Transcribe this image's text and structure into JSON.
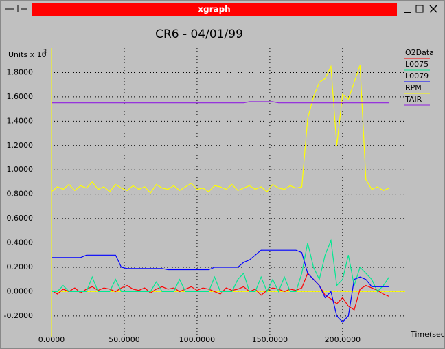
{
  "window_title": "xgraph",
  "chart_data": {
    "type": "line",
    "title": "CR6 - 04/01/99",
    "ylabel": "Units x 10",
    "ylabel_exponent": "3",
    "xlabel": "Time(sec)",
    "x": [
      0,
      4,
      8,
      12,
      16,
      20,
      24,
      28,
      32,
      36,
      40,
      44,
      48,
      52,
      56,
      60,
      64,
      68,
      72,
      76,
      80,
      84,
      88,
      92,
      96,
      100,
      104,
      108,
      112,
      116,
      120,
      124,
      128,
      132,
      136,
      140,
      144,
      148,
      152,
      156,
      160,
      164,
      168,
      172,
      176,
      180,
      184,
      188,
      192,
      196,
      200,
      204,
      208,
      212,
      216,
      220,
      224,
      228,
      232
    ],
    "series": [
      {
        "name": "O2Data",
        "color": "#ff0000",
        "values": [
          0.01,
          -0.02,
          0.02,
          0.0,
          0.03,
          -0.01,
          0.02,
          0.04,
          0.01,
          0.03,
          0.02,
          0.0,
          0.03,
          0.05,
          0.02,
          0.01,
          0.03,
          -0.01,
          0.02,
          0.04,
          0.02,
          0.03,
          0.0,
          0.02,
          0.04,
          0.01,
          0.03,
          0.02,
          0.0,
          -0.02,
          0.03,
          0.01,
          0.02,
          0.04,
          0.0,
          0.02,
          -0.03,
          0.01,
          0.03,
          0.02,
          0.0,
          0.02,
          0.01,
          0.03,
          0.15,
          0.1,
          0.05,
          -0.03,
          -0.06,
          -0.1,
          -0.05,
          -0.12,
          -0.15,
          0.02,
          0.05,
          0.03,
          0.01,
          -0.02,
          -0.04
        ]
      },
      {
        "name": "L0075",
        "color": "#00e890",
        "values": [
          0,
          0,
          0.05,
          0,
          0,
          0,
          0,
          0.12,
          0,
          0,
          0,
          0.1,
          0,
          0,
          0,
          0,
          0,
          0,
          0.08,
          0,
          0,
          0,
          0.1,
          0,
          0,
          0,
          0,
          0,
          0.12,
          0,
          0,
          0,
          0.1,
          0.15,
          0,
          0,
          0.12,
          0,
          0.1,
          0,
          0.12,
          0,
          0,
          0.15,
          0.4,
          0.2,
          0.1,
          0.3,
          0.42,
          0.05,
          0.1,
          0.3,
          0.05,
          0.2,
          0.15,
          0.1,
          0,
          0.05,
          0.12
        ]
      },
      {
        "name": "L0079",
        "color": "#0000ff",
        "values": [
          0.28,
          0.28,
          0.28,
          0.28,
          0.28,
          0.28,
          0.3,
          0.3,
          0.3,
          0.3,
          0.3,
          0.3,
          0.2,
          0.19,
          0.19,
          0.19,
          0.19,
          0.19,
          0.19,
          0.19,
          0.18,
          0.18,
          0.18,
          0.18,
          0.18,
          0.18,
          0.18,
          0.18,
          0.2,
          0.2,
          0.2,
          0.2,
          0.2,
          0.24,
          0.26,
          0.3,
          0.34,
          0.34,
          0.34,
          0.34,
          0.34,
          0.34,
          0.34,
          0.32,
          0.15,
          0.1,
          0.05,
          -0.05,
          0.0,
          -0.2,
          -0.25,
          -0.2,
          0.1,
          0.12,
          0.1,
          0.04,
          0.04,
          0.04,
          0.04
        ]
      },
      {
        "name": "RPM",
        "color": "#ffff00",
        "values": [
          0.82,
          0.86,
          0.84,
          0.88,
          0.83,
          0.87,
          0.85,
          0.9,
          0.84,
          0.86,
          0.82,
          0.88,
          0.85,
          0.83,
          0.87,
          0.84,
          0.86,
          0.81,
          0.88,
          0.85,
          0.84,
          0.87,
          0.83,
          0.86,
          0.89,
          0.84,
          0.85,
          0.82,
          0.87,
          0.86,
          0.84,
          0.88,
          0.83,
          0.85,
          0.87,
          0.84,
          0.86,
          0.82,
          0.88,
          0.85,
          0.84,
          0.87,
          0.85,
          0.86,
          1.42,
          1.6,
          1.72,
          1.75,
          1.85,
          1.2,
          1.62,
          1.58,
          1.72,
          1.86,
          0.92,
          0.84,
          0.86,
          0.83,
          0.85
        ]
      },
      {
        "name": "TAIR",
        "color": "#9020e0",
        "values": [
          1.55,
          1.55,
          1.55,
          1.55,
          1.55,
          1.55,
          1.55,
          1.55,
          1.55,
          1.55,
          1.55,
          1.55,
          1.55,
          1.55,
          1.55,
          1.55,
          1.55,
          1.55,
          1.55,
          1.55,
          1.55,
          1.55,
          1.55,
          1.55,
          1.55,
          1.55,
          1.55,
          1.55,
          1.55,
          1.55,
          1.55,
          1.55,
          1.55,
          1.55,
          1.56,
          1.56,
          1.56,
          1.56,
          1.56,
          1.55,
          1.55,
          1.55,
          1.55,
          1.55,
          1.55,
          1.55,
          1.55,
          1.55,
          1.55,
          1.55,
          1.55,
          1.55,
          1.55,
          1.55,
          1.55,
          1.55,
          1.55,
          1.55,
          1.55
        ]
      }
    ],
    "xlim": [
      0,
      243
    ],
    "ylim": [
      -0.37,
      2.0
    ],
    "xticks": [
      {
        "value": 0,
        "label": "0.0000"
      },
      {
        "value": 50,
        "label": "50.0000"
      },
      {
        "value": 100,
        "label": "100.0000"
      },
      {
        "value": 150,
        "label": "150.0000"
      },
      {
        "value": 200,
        "label": "200.0000"
      }
    ],
    "yticks": [
      {
        "value": -0.2,
        "label": "-0.2000"
      },
      {
        "value": 0,
        "label": "0.0000"
      },
      {
        "value": 0.2,
        "label": "0.2000"
      },
      {
        "value": 0.4,
        "label": "0.4000"
      },
      {
        "value": 0.6,
        "label": "0.6000"
      },
      {
        "value": 0.8,
        "label": "0.8000"
      },
      {
        "value": 1.0,
        "label": "1.0000"
      },
      {
        "value": 1.2,
        "label": "1.2000"
      },
      {
        "value": 1.4,
        "label": "1.4000"
      },
      {
        "value": 1.6,
        "label": "1.6000"
      },
      {
        "value": 1.8,
        "label": "1.8000"
      }
    ],
    "grid": true,
    "legend": "top-right"
  }
}
